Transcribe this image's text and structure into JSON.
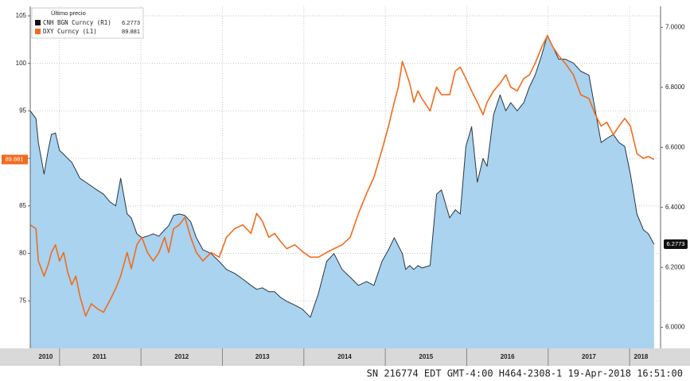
{
  "chart_data": {
    "type": "line",
    "legend_title": "Último precio",
    "footer": "SN 216774 EDT  GMT-4:00 H464-2308-1 19-Apr-2018 16:51:00",
    "x": [
      2010.64,
      2010.71,
      2010.74,
      2010.81,
      2010.86,
      2010.9,
      2010.95,
      2011.0,
      2011.05,
      2011.1,
      2011.15,
      2011.2,
      2011.25,
      2011.32,
      2011.39,
      2011.46,
      2011.54,
      2011.62,
      2011.69,
      2011.75,
      2011.83,
      2011.88,
      2011.95,
      2012.01,
      2012.08,
      2012.15,
      2012.22,
      2012.29,
      2012.34,
      2012.4,
      2012.47,
      2012.54,
      2012.61,
      2012.68,
      2012.76,
      2012.86,
      2012.96,
      2013.05,
      2013.15,
      2013.25,
      2013.35,
      2013.42,
      2013.49,
      2013.57,
      2013.64,
      2013.71,
      2013.79,
      2013.89,
      2013.98,
      2014.08,
      2014.18,
      2014.28,
      2014.37,
      2014.47,
      2014.57,
      2014.67,
      2014.77,
      2014.86,
      2014.96,
      2015.04,
      2015.11,
      2015.16,
      2015.21,
      2015.25,
      2015.3,
      2015.35,
      2015.4,
      2015.45,
      2015.55,
      2015.63,
      2015.69,
      2015.79,
      2015.86,
      2015.92,
      2015.99,
      2016.06,
      2016.13,
      2016.2,
      2016.25,
      2016.33,
      2016.41,
      2016.48,
      2016.54,
      2016.62,
      2016.7,
      2016.77,
      2016.84,
      2016.92,
      2016.99,
      2017.06,
      2017.13,
      2017.21,
      2017.31,
      2017.4,
      2017.5,
      2017.58,
      2017.65,
      2017.72,
      2017.8,
      2017.87,
      2017.94,
      2018.01,
      2018.09,
      2018.17,
      2018.23,
      2018.3
    ],
    "series": [
      {
        "name": "CNH BGN Curncy (R1)",
        "color": "#a9d3ef",
        "line_color": "#2b3642",
        "axis": "y2",
        "fill": true,
        "values": [
          6.722,
          6.696,
          6.616,
          6.511,
          6.59,
          6.643,
          6.648,
          6.59,
          6.577,
          6.563,
          6.55,
          6.524,
          6.497,
          6.484,
          6.471,
          6.458,
          6.444,
          6.418,
          6.405,
          6.497,
          6.378,
          6.365,
          6.312,
          6.299,
          6.304,
          6.312,
          6.304,
          6.325,
          6.339,
          6.373,
          6.378,
          6.373,
          6.352,
          6.299,
          6.259,
          6.246,
          6.22,
          6.193,
          6.18,
          6.161,
          6.14,
          6.127,
          6.132,
          6.119,
          6.119,
          6.101,
          6.087,
          6.074,
          6.061,
          6.034,
          6.114,
          6.22,
          6.246,
          6.193,
          6.167,
          6.14,
          6.153,
          6.14,
          6.22,
          6.259,
          6.299,
          6.272,
          6.246,
          6.193,
          6.206,
          6.193,
          6.206,
          6.198,
          6.206,
          6.444,
          6.458,
          6.365,
          6.392,
          6.378,
          6.603,
          6.669,
          6.484,
          6.563,
          6.537,
          6.709,
          6.775,
          6.722,
          6.749,
          6.722,
          6.749,
          6.802,
          6.841,
          6.907,
          6.974,
          6.934,
          6.894,
          6.894,
          6.881,
          6.854,
          6.841,
          6.722,
          6.616,
          6.63,
          6.643,
          6.616,
          6.603,
          6.511,
          6.378,
          6.325,
          6.312,
          6.2773
        ]
      },
      {
        "name": "DXY Curncy (L1)",
        "color": "#f26b1d",
        "axis": "y",
        "values": [
          83.0,
          82.6,
          79.2,
          77.6,
          78.8,
          80.1,
          80.9,
          79.2,
          80.1,
          78.0,
          76.7,
          77.6,
          75.5,
          73.4,
          74.7,
          74.2,
          73.8,
          75.1,
          76.3,
          77.6,
          80.1,
          78.4,
          80.9,
          81.7,
          80.1,
          79.2,
          80.1,
          81.7,
          80.1,
          82.6,
          83.0,
          83.8,
          81.7,
          80.1,
          79.2,
          80.1,
          79.6,
          81.7,
          82.6,
          83.0,
          82.1,
          84.2,
          83.4,
          81.7,
          82.1,
          81.3,
          80.5,
          80.9,
          80.2,
          79.6,
          79.6,
          80.1,
          80.5,
          80.9,
          81.7,
          84.2,
          86.3,
          88.0,
          90.9,
          93.4,
          95.9,
          97.5,
          100.2,
          99.2,
          97.9,
          95.9,
          97.1,
          96.3,
          95.0,
          97.5,
          96.7,
          96.7,
          99.2,
          99.6,
          98.4,
          97.1,
          95.9,
          94.6,
          95.9,
          97.1,
          97.9,
          98.8,
          97.5,
          97.1,
          98.4,
          98.8,
          100.0,
          101.7,
          102.9,
          101.7,
          100.8,
          100.0,
          98.8,
          96.7,
          96.3,
          94.6,
          93.4,
          93.8,
          92.5,
          93.4,
          94.2,
          93.4,
          90.5,
          90.0,
          90.2,
          89.881
        ]
      }
    ],
    "xlim": [
      2010.64,
      2018.38
    ],
    "xticks": [
      2011,
      2012,
      2013,
      2014,
      2015,
      2016,
      2017,
      2018
    ],
    "year_labels": [
      {
        "value": 2010.83,
        "label": "2010"
      },
      {
        "value": 2011.49,
        "label": "2011"
      },
      {
        "value": 2012.5,
        "label": "2012"
      },
      {
        "value": 2013.49,
        "label": "2013"
      },
      {
        "value": 2014.5,
        "label": "2014"
      },
      {
        "value": 2015.5,
        "label": "2015"
      },
      {
        "value": 2016.5,
        "label": "2016"
      },
      {
        "value": 2017.5,
        "label": "2017"
      },
      {
        "value": 2018.14,
        "label": "2018"
      }
    ],
    "ylim": [
      70,
      106
    ],
    "yticks": [
      75,
      80,
      85,
      90,
      95,
      100,
      105
    ],
    "y2lim": [
      5.93,
      7.07
    ],
    "y2ticks": [
      {
        "value": 6,
        "label": "6.0000"
      },
      {
        "value": 6.2,
        "label": "6.2000"
      },
      {
        "value": 6.4,
        "label": "6.4000"
      },
      {
        "value": 6.6,
        "label": "6.6000"
      },
      {
        "value": 6.8,
        "label": "6.8000"
      },
      {
        "value": 7,
        "label": "7.0000"
      }
    ],
    "grid": true
  }
}
